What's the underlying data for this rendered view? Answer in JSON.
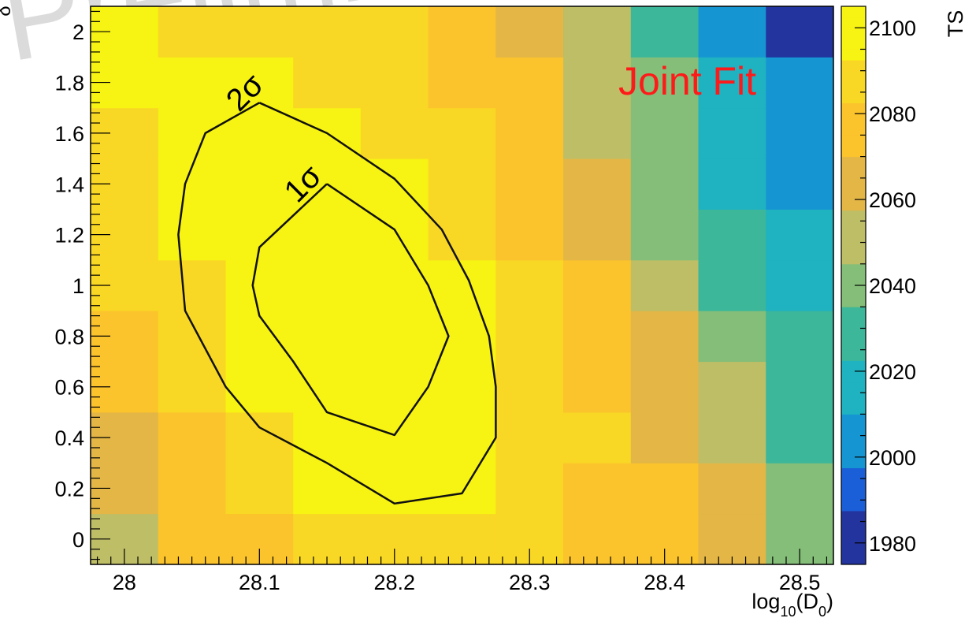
{
  "chart_data": {
    "type": "heatmap",
    "title": "",
    "annotation": "Joint Fit",
    "annotation_color": "#ff1a1a",
    "xlabel": "log10(D0)",
    "xlabel_parts": {
      "base": "log",
      "sub1": "10",
      "mid": "(D",
      "sub2": "0",
      "end": ")"
    },
    "ylabel": "δ",
    "zlabel": "TS",
    "xlim": [
      27.975,
      28.525
    ],
    "ylim": [
      -0.1,
      2.1
    ],
    "zlim": [
      1975,
      2105
    ],
    "x_ticks": [
      28,
      28.1,
      28.2,
      28.3,
      28.4,
      28.5
    ],
    "x_tick_labels": [
      "28",
      "28.1",
      "28.2",
      "28.3",
      "28.4",
      "28.5"
    ],
    "y_ticks": [
      0,
      0.2,
      0.4,
      0.6,
      0.8,
      1,
      1.2,
      1.4,
      1.6,
      1.8,
      2
    ],
    "y_tick_labels": [
      "0",
      "0.2",
      "0.4",
      "0.6",
      "0.8",
      "1",
      "1.2",
      "1.4",
      "1.6",
      "1.8",
      "2"
    ],
    "z_ticks": [
      1980,
      2000,
      2020,
      2040,
      2060,
      2080,
      2100
    ],
    "z_tick_labels": [
      "1980",
      "2000",
      "2020",
      "2040",
      "2060",
      "2080",
      "2100"
    ],
    "x_bin_edges": [
      27.975,
      28.025,
      28.075,
      28.125,
      28.175,
      28.225,
      28.275,
      28.325,
      28.375,
      28.425,
      28.475,
      28.525
    ],
    "y_bin_edges": [
      -0.1,
      0.1,
      0.3,
      0.5,
      0.7,
      0.9,
      1.1,
      1.3,
      1.5,
      1.7,
      1.9,
      2.1
    ],
    "z_values": [
      [
        2050,
        2070,
        2078,
        2090,
        2090,
        2090,
        2085,
        2076,
        2070,
        2062,
        2038
      ],
      [
        2062,
        2076,
        2086,
        2095,
        2096,
        2097,
        2086,
        2080,
        2072,
        2058,
        2036
      ],
      [
        2068,
        2080,
        2093,
        2096,
        2100,
        2098,
        2089,
        2082,
        2068,
        2052,
        2032
      ],
      [
        2073,
        2084,
        2096,
        2101,
        2100,
        2097,
        2088,
        2078,
        2064,
        2046,
        2030
      ],
      [
        2078,
        2088,
        2098,
        2102,
        2101,
        2097,
        2088,
        2076,
        2058,
        2038,
        2024
      ],
      [
        2082,
        2093,
        2100,
        2102,
        2100,
        2095,
        2084,
        2070,
        2050,
        2032,
        2018
      ],
      [
        2083,
        2095,
        2100,
        2101,
        2098,
        2090,
        2080,
        2064,
        2044,
        2026,
        2012
      ],
      [
        2088,
        2098,
        2101,
        2100,
        2094,
        2086,
        2078,
        2060,
        2040,
        2020,
        2006
      ],
      [
        2090,
        2098,
        2100,
        2096,
        2090,
        2083,
        2074,
        2056,
        2036,
        2014,
        2002
      ],
      [
        2095,
        2098,
        2097,
        2093,
        2088,
        2079,
        2072,
        2056,
        2036,
        2016,
        2000
      ],
      [
        2095,
        2093,
        2091,
        2086,
        2082,
        2072,
        2066,
        2050,
        2032,
        2008,
        1985
      ]
    ],
    "contours": [
      {
        "label": "2σ",
        "points": [
          [
            28.1,
            1.72
          ],
          [
            28.15,
            1.6
          ],
          [
            28.2,
            1.42
          ],
          [
            28.235,
            1.22
          ],
          [
            28.255,
            1.02
          ],
          [
            28.27,
            0.8
          ],
          [
            28.275,
            0.6
          ],
          [
            28.275,
            0.4
          ],
          [
            28.25,
            0.18
          ],
          [
            28.2,
            0.14
          ],
          [
            28.15,
            0.3
          ],
          [
            28.1,
            0.44
          ],
          [
            28.075,
            0.6
          ],
          [
            28.045,
            0.9
          ],
          [
            28.04,
            1.2
          ],
          [
            28.045,
            1.4
          ],
          [
            28.06,
            1.6
          ],
          [
            28.1,
            1.72
          ]
        ]
      },
      {
        "label": "1σ",
        "points": [
          [
            28.15,
            1.4
          ],
          [
            28.2,
            1.22
          ],
          [
            28.225,
            1.0
          ],
          [
            28.24,
            0.8
          ],
          [
            28.225,
            0.6
          ],
          [
            28.2,
            0.41
          ],
          [
            28.15,
            0.5
          ],
          [
            28.125,
            0.7
          ],
          [
            28.1,
            0.88
          ],
          [
            28.095,
            1.0
          ],
          [
            28.1,
            1.15
          ],
          [
            28.15,
            1.4
          ]
        ]
      }
    ],
    "contour_label_positions": [
      {
        "label": "2σ",
        "x": 28.085,
        "y": 1.68
      },
      {
        "label": "1σ",
        "x": 28.128,
        "y": 1.32
      }
    ],
    "colors": {
      "frame": "#000000",
      "contour": "#111111",
      "annotation": "#ff1a1a",
      "watermark": "#cfcfcf",
      "palette": [
        "#23349e",
        "#1a5fd8",
        "#1596d2",
        "#1fb2c0",
        "#3cb79a",
        "#84be78",
        "#bebe66",
        "#e3b646",
        "#fbc32c",
        "#f9d725",
        "#f7f312"
      ]
    }
  },
  "watermark_text": "Prelimin"
}
